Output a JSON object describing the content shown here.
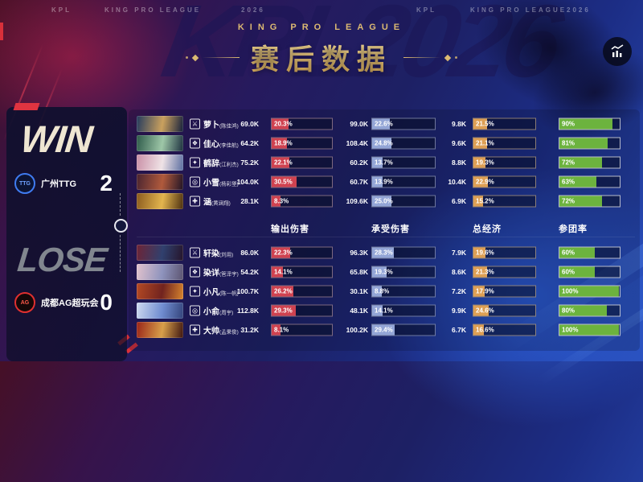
{
  "header": {
    "top_strip": {
      "left": [
        "KPL",
        "KING PRO LEAGUE",
        "2026"
      ],
      "right": [
        "KPL",
        "KING PRO LEAGUE",
        "2026"
      ]
    },
    "league_label": "KING PRO LEAGUE",
    "title": "赛后数据",
    "watermark": "KPL2026"
  },
  "stats_button": {
    "icon": "trend-chart-icon"
  },
  "scoreboard": {
    "win": {
      "result_label": "WIN",
      "team_name": "广州TTG",
      "score": "2",
      "logo_text": "TTG"
    },
    "lose": {
      "result_label": "LOSE",
      "team_name": "成都AG超玩会",
      "score": "0",
      "logo_text": "AG"
    }
  },
  "table": {
    "columns": [
      "输出伤害",
      "承受伤害",
      "总经济",
      "参团率"
    ],
    "bar_colors": {
      "damage_dealt": "#cf4250",
      "damage_taken": "#93a5d6",
      "economy": "#dd9f54",
      "participation": "#6cb33e"
    },
    "teams": [
      {
        "side": "win",
        "players": [
          {
            "name": "萝卜",
            "real_name": "(陈佳鸿)",
            "lane": "clash-lane",
            "glyph": "⚔",
            "damage_dealt": "69.0K",
            "damage_dealt_pct": "20.3%",
            "damage_taken": "99.0K",
            "damage_taken_pct": "22.6%",
            "economy": "9.8K",
            "economy_pct": "21.5%",
            "participation": "90%",
            "avatar": [
              "#233a5e",
              "#caa15e",
              "#141f3c"
            ]
          },
          {
            "name": "佳心",
            "real_name": "(李佳航)",
            "lane": "jungle",
            "glyph": "❖",
            "damage_dealt": "64.2K",
            "damage_dealt_pct": "18.9%",
            "damage_taken": "108.4K",
            "damage_taken_pct": "24.8%",
            "economy": "9.6K",
            "economy_pct": "21.1%",
            "participation": "81%",
            "avatar": [
              "#2e5a4a",
              "#9ec7a8",
              "#1c2f3e"
            ]
          },
          {
            "name": "鹤辞",
            "real_name": "(江利杰)",
            "lane": "mid-lane",
            "glyph": "✦",
            "damage_dealt": "75.2K",
            "damage_dealt_pct": "22.1%",
            "damage_taken": "60.2K",
            "damage_taken_pct": "13.7%",
            "economy": "8.8K",
            "economy_pct": "19.3%",
            "participation": "72%",
            "avatar": [
              "#c98fa6",
              "#efe3e6",
              "#5a6da0"
            ]
          },
          {
            "name": "小雪",
            "real_name": "(杨彩堡)",
            "lane": "farm-lane",
            "glyph": "◎",
            "damage_dealt": "104.0K",
            "damage_dealt_pct": "30.5%",
            "damage_taken": "60.7K",
            "damage_taken_pct": "13.9%",
            "economy": "10.4K",
            "economy_pct": "22.9%",
            "participation": "63%",
            "avatar": [
              "#4a2430",
              "#b05a3c",
              "#201426"
            ]
          },
          {
            "name": "涵",
            "real_name": "(黄涵翔)",
            "lane": "roam",
            "glyph": "✚",
            "damage_dealt": "28.1K",
            "damage_dealt_pct": "8.3%",
            "damage_taken": "109.6K",
            "damage_taken_pct": "25.0%",
            "economy": "6.9K",
            "economy_pct": "15.2%",
            "participation": "72%",
            "avatar": [
              "#8a5a1e",
              "#e3b54e",
              "#4a2e10"
            ]
          }
        ]
      },
      {
        "side": "lose",
        "players": [
          {
            "name": "轩染",
            "real_name": "(刘用)",
            "lane": "clash-lane",
            "glyph": "⚔",
            "damage_dealt": "86.0K",
            "damage_dealt_pct": "22.3%",
            "damage_taken": "96.3K",
            "damage_taken_pct": "28.3%",
            "economy": "7.9K",
            "economy_pct": "19.6%",
            "participation": "60%",
            "avatar": [
              "#6e2436",
              "#30406e",
              "#26142a"
            ]
          },
          {
            "name": "染详",
            "real_name": "(管泽宇)",
            "lane": "jungle",
            "glyph": "❖",
            "damage_dealt": "54.2K",
            "damage_dealt_pct": "14.1%",
            "damage_taken": "65.8K",
            "damage_taken_pct": "19.3%",
            "economy": "8.6K",
            "economy_pct": "21.3%",
            "participation": "60%",
            "avatar": [
              "#e3c3cd",
              "#8e93bd",
              "#5c5470"
            ]
          },
          {
            "name": "小凡",
            "real_name": "(陈一帆)",
            "lane": "mid-lane",
            "glyph": "✦",
            "damage_dealt": "100.7K",
            "damage_dealt_pct": "26.2%",
            "damage_taken": "30.1K",
            "damage_taken_pct": "8.8%",
            "economy": "7.2K",
            "economy_pct": "17.9%",
            "participation": "100%",
            "avatar": [
              "#b54a24",
              "#71231f",
              "#d8862e"
            ]
          },
          {
            "name": "小俞",
            "real_name": "(周宇)",
            "lane": "farm-lane",
            "glyph": "◎",
            "damage_dealt": "112.8K",
            "damage_dealt_pct": "29.3%",
            "damage_taken": "48.1K",
            "damage_taken_pct": "14.1%",
            "economy": "9.9K",
            "economy_pct": "24.6%",
            "participation": "80%",
            "avatar": [
              "#cfdaf0",
              "#6f8cd0",
              "#33437a"
            ]
          },
          {
            "name": "大帅",
            "real_name": "(孟果俊)",
            "lane": "roam",
            "glyph": "✚",
            "damage_dealt": "31.2K",
            "damage_dealt_pct": "8.1%",
            "damage_taken": "100.2K",
            "damage_taken_pct": "29.4%",
            "economy": "6.7K",
            "economy_pct": "16.6%",
            "participation": "100%",
            "avatar": [
              "#992418",
              "#d89f4a",
              "#3c1410"
            ]
          }
        ]
      }
    ]
  }
}
